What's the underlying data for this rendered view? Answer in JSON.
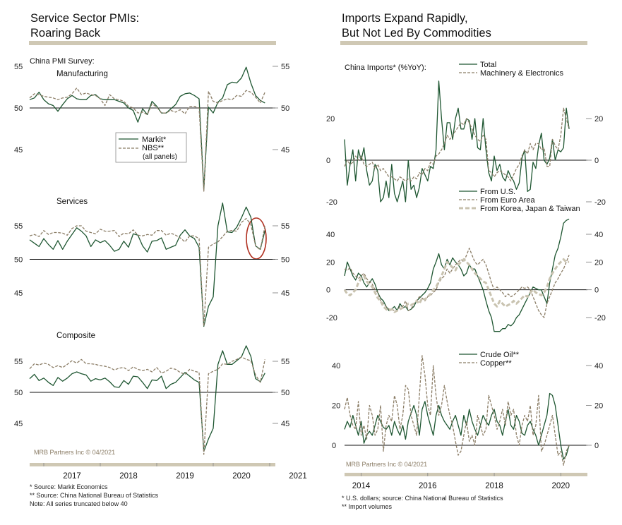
{
  "left": {
    "title_line1": "Service Sector PMIs:",
    "title_line2": "Roaring Back",
    "survey_label": "China PMI Survey:",
    "legend": {
      "markit": "Markit*",
      "nbs": "NBS**",
      "nbs_note": "(all panels)"
    },
    "credit": "MRB Partners Inc © 04/2021",
    "footnotes": [
      "*  Source: Markit Economics",
      "** Source: China National Bureau of Statistics",
      "Note: All series truncated below 40"
    ]
  },
  "right": {
    "title_line1": "Imports Expand Rapidly,",
    "title_line2": "But Not Led By Commodities",
    "credit": "MRB Partners Inc © 04/2021",
    "footnotes": [
      "*  U.S. dollars; source: China National Bureau of Statistics",
      "** Import volumes"
    ]
  },
  "colors": {
    "green": "#1e5631",
    "tan": "#8b7d66",
    "light": "#c9c3b0",
    "highlight": "#b03020",
    "rule": "#cfc8b4"
  },
  "chart_data": [
    {
      "id": "manufacturing",
      "type": "line",
      "title": "Manufacturing",
      "x_start": 2016.75,
      "x_step": 0.08333,
      "ylim": [
        40,
        56
      ],
      "yticks": [
        45,
        50,
        55
      ],
      "baseline": 50,
      "series": [
        {
          "name": "Markit*",
          "style": "solid",
          "values": [
            51.0,
            51.2,
            51.9,
            51.0,
            50.5,
            50.3,
            49.6,
            50.4,
            51.1,
            51.5,
            51.1,
            51.0,
            51.0,
            51.5,
            51.6,
            51.1,
            51.0,
            51.0,
            51.0,
            50.8,
            50.6,
            50.0,
            49.7,
            48.3,
            49.9,
            49.2,
            50.8,
            50.2,
            49.4,
            49.4,
            49.9,
            50.4,
            51.4,
            51.7,
            51.8,
            51.5,
            51.1,
            40.3,
            50.1,
            49.4,
            50.7,
            51.2,
            52.8,
            53.1,
            53.0,
            53.6,
            54.9,
            53.0,
            51.5,
            50.9,
            50.6
          ]
        },
        {
          "name": "NBS**",
          "style": "dashed",
          "values": [
            51.2,
            51.7,
            51.6,
            51.4,
            51.3,
            51.2,
            51.0,
            51.2,
            51.3,
            51.7,
            52.4,
            51.6,
            51.8,
            51.6,
            51.5,
            51.1,
            50.3,
            51.6,
            51.1,
            51.0,
            50.8,
            50.2,
            50.0,
            49.4,
            49.5,
            49.2,
            50.5,
            50.1,
            49.4,
            49.4,
            49.7,
            49.5,
            49.8,
            49.3,
            50.2,
            50.2,
            50.0,
            40.0,
            52.0,
            50.8,
            50.6,
            50.9,
            51.1,
            51.0,
            51.5,
            51.4,
            52.1,
            51.9,
            51.3,
            50.6,
            51.9
          ]
        }
      ]
    },
    {
      "id": "services",
      "type": "line",
      "title": "Services",
      "x_start": 2016.75,
      "x_step": 0.08333,
      "ylim": [
        40,
        59
      ],
      "yticks": [
        45,
        50,
        55
      ],
      "baseline": 50,
      "series": [
        {
          "name": "Markit*",
          "style": "solid",
          "values": [
            52.9,
            52.4,
            51.9,
            53.1,
            52.2,
            51.5,
            52.8,
            51.5,
            52.7,
            53.7,
            54.7,
            54.2,
            53.5,
            51.9,
            52.9,
            52.5,
            52.8,
            52.1,
            51.2,
            51.5,
            52.7,
            51.8,
            53.8,
            53.6,
            52.0,
            51.1,
            52.7,
            52.8,
            53.2,
            51.5,
            51.8,
            52.1,
            53.6,
            54.4,
            53.5,
            53.1,
            51.8,
            40.0,
            43.0,
            44.4,
            55.0,
            58.4,
            54.1,
            54.0,
            54.8,
            56.2,
            57.8,
            56.3,
            52.0,
            51.5,
            54.3
          ]
        },
        {
          "name": "NBS**",
          "style": "dashed",
          "values": [
            53.5,
            53.7,
            53.4,
            54.3,
            53.7,
            54.0,
            54.0,
            53.9,
            53.6,
            54.6,
            55.0,
            55.0,
            54.2,
            54.0,
            53.8,
            54.5,
            54.2,
            54.2,
            54.3,
            53.4,
            53.9,
            53.8,
            54.4,
            53.6,
            53.5,
            53.7,
            53.6,
            54.3,
            54.3,
            53.6,
            53.9,
            53.6,
            53.2,
            52.6,
            53.5,
            53.5,
            53.1,
            40.0,
            51.8,
            52.3,
            52.6,
            53.4,
            54.2,
            54.3,
            54.2,
            55.5,
            56.1,
            55.2,
            52.0,
            51.4,
            55.0
          ]
        }
      ]
    },
    {
      "id": "composite",
      "type": "line",
      "title": "Composite",
      "x_start": 2016.75,
      "x_step": 0.08333,
      "ylim": [
        40,
        58
      ],
      "yticks": [
        45,
        50,
        55
      ],
      "baseline": 50,
      "series": [
        {
          "name": "Markit*",
          "style": "solid",
          "values": [
            52.2,
            52.9,
            51.9,
            52.3,
            51.6,
            51.1,
            52.4,
            51.8,
            52.3,
            53.0,
            53.3,
            53.0,
            52.8,
            51.8,
            52.2,
            52.0,
            52.3,
            51.7,
            50.9,
            50.8,
            51.9,
            51.3,
            52.6,
            52.5,
            51.6,
            50.6,
            52.0,
            51.9,
            52.6,
            50.6,
            51.3,
            51.6,
            52.4,
            53.2,
            52.6,
            52.0,
            51.6,
            40.5,
            42.5,
            44.2,
            54.5,
            56.7,
            54.5,
            54.5,
            55.1,
            55.7,
            57.5,
            55.8,
            52.2,
            51.7,
            53.1
          ]
        },
        {
          "name": "NBS**",
          "style": "dashed",
          "values": [
            53.8,
            54.6,
            54.4,
            54.7,
            54.5,
            54.0,
            54.3,
            54.0,
            54.5,
            55.1,
            54.7,
            55.3,
            54.6,
            54.6,
            54.5,
            54.3,
            54.2,
            54.0,
            53.6,
            53.9,
            54.0,
            53.5,
            54.1,
            53.7,
            53.5,
            53.7,
            53.3,
            54.0,
            53.1,
            53.4,
            53.9,
            53.7,
            53.2,
            52.9,
            53.7,
            53.4,
            53.2,
            40.0,
            53.0,
            53.4,
            53.7,
            54.6,
            54.5,
            55.0,
            55.3,
            55.7,
            55.3,
            55.1,
            52.8,
            51.6,
            55.3
          ]
        }
      ]
    },
    {
      "id": "imports_total",
      "type": "line",
      "title": "China Imports* (%YoY):",
      "x_start": 2013.5,
      "x_step": 0.08333,
      "ylim": [
        -27,
        40
      ],
      "yticks": [
        -20,
        0,
        20
      ],
      "baseline": 0,
      "series": [
        {
          "name": "Total",
          "style": "solid",
          "values": [
            10,
            -12,
            -2,
            5,
            -10,
            5,
            0,
            6,
            -5,
            -12,
            -10,
            -2,
            -5,
            -20,
            -18,
            -10,
            -18,
            -2,
            -16,
            -20,
            -15,
            -10,
            -20,
            0,
            -14,
            -12,
            -18,
            -13,
            -4,
            -7,
            -10,
            -3,
            -4,
            5,
            38,
            20,
            5,
            18,
            18,
            10,
            20,
            25,
            15,
            15,
            20,
            19,
            10,
            20,
            6,
            5,
            20,
            5,
            -6,
            -10,
            2,
            -5,
            -2,
            -8,
            -10,
            -5,
            -8,
            -10,
            -14,
            -11,
            1,
            5,
            -15,
            -14,
            -1,
            -4,
            7,
            13,
            0,
            -2,
            1,
            10,
            0,
            5,
            4,
            6,
            25,
            15
          ]
        },
        {
          "name": "Machinery & Electronics",
          "style": "dashed",
          "values": [
            -3,
            0,
            -2,
            -1,
            2,
            0,
            2,
            -2,
            -3,
            -2,
            -1,
            -4,
            -2,
            -5,
            -4,
            -6,
            -8,
            -8,
            -9,
            -10,
            -8,
            -9,
            -10,
            -9,
            -10,
            -8,
            -9,
            -6,
            -7,
            -4,
            -5,
            -1,
            -2,
            2,
            3,
            5,
            8,
            12,
            10,
            12,
            14,
            16,
            18,
            17,
            20,
            18,
            15,
            12,
            10,
            9,
            12,
            10,
            -5,
            -6,
            -8,
            -6,
            -5,
            -6,
            -7,
            -8,
            -10,
            -7,
            -4,
            -2,
            2,
            5,
            3,
            8,
            5,
            8,
            8,
            5,
            6,
            -3,
            -3,
            10,
            7,
            5,
            12,
            25,
            20,
            15
          ]
        }
      ]
    },
    {
      "id": "imports_region",
      "type": "line",
      "title": "",
      "x_start": 2013.5,
      "x_step": 0.08333,
      "ylim": [
        -30,
        52
      ],
      "yticks": [
        -20,
        0,
        20,
        40
      ],
      "baseline": 0,
      "series": [
        {
          "name": "From U.S.",
          "style": "solid",
          "values": [
            10,
            20,
            15,
            10,
            7,
            12,
            10,
            5,
            2,
            5,
            8,
            4,
            -2,
            -6,
            -8,
            -12,
            -15,
            -14,
            -12,
            -15,
            -10,
            -13,
            -12,
            -15,
            -14,
            -12,
            -8,
            -6,
            -4,
            -2,
            1,
            5,
            15,
            20,
            26,
            18,
            15,
            22,
            18,
            23,
            20,
            18,
            15,
            10,
            12,
            18,
            15,
            15,
            10,
            5,
            0,
            -8,
            -15,
            -20,
            -30,
            -35,
            -33,
            -28,
            -28,
            -25,
            -26,
            -24,
            -20,
            -18,
            -14,
            -10,
            -6,
            -2,
            2,
            1,
            0,
            0,
            -5,
            -10,
            5,
            15,
            25,
            30,
            38,
            48,
            50,
            51
          ]
        },
        {
          "name": "From Euro Area",
          "style": "dashed",
          "values": [
            15,
            14,
            16,
            12,
            10,
            8,
            10,
            12,
            8,
            6,
            4,
            0,
            -2,
            -8,
            -10,
            -12,
            -14,
            -14,
            -15,
            -15,
            -12,
            -12,
            -8,
            -15,
            -14,
            -10,
            -8,
            -5,
            -6,
            -8,
            -5,
            -4,
            -2,
            0,
            5,
            8,
            10,
            15,
            12,
            15,
            18,
            20,
            22,
            20,
            25,
            30,
            25,
            20,
            18,
            20,
            22,
            18,
            12,
            5,
            0,
            2,
            0,
            -2,
            -5,
            -3,
            -5,
            -4,
            -2,
            0,
            2,
            1,
            2,
            0,
            -5,
            -10,
            -15,
            -18,
            -20,
            -10,
            -5,
            0,
            5,
            8,
            12,
            15,
            20,
            25
          ]
        },
        {
          "name": "From Korea, Japan & Taiwan",
          "style": "thick-dashed",
          "values": [
            0,
            -3,
            -4,
            -2,
            0,
            5,
            8,
            10,
            6,
            4,
            2,
            -2,
            -6,
            -8,
            -12,
            -14,
            -15,
            -14,
            -16,
            -15,
            -14,
            -13,
            -12,
            -10,
            -11,
            -10,
            -8,
            -10,
            -6,
            -7,
            -5,
            -3,
            0,
            2,
            6,
            10,
            15,
            20,
            18,
            16,
            14,
            18,
            20,
            22,
            20,
            18,
            15,
            12,
            10,
            8,
            6,
            5,
            0,
            -5,
            -10,
            -12,
            -8,
            -10,
            -12,
            -11,
            -10,
            -8,
            -10,
            -8,
            -6,
            -4,
            -5,
            -2,
            0,
            -2,
            -3,
            -4,
            -2,
            2,
            8,
            12,
            15,
            18,
            20,
            22,
            20,
            20
          ]
        }
      ]
    },
    {
      "id": "imports_commodity",
      "type": "line",
      "title": "",
      "x_start": 2013.5,
      "x_step": 0.08333,
      "ylim": [
        -12,
        50
      ],
      "yticks": [
        0,
        20,
        40
      ],
      "baseline": 0,
      "series": [
        {
          "name": "Crude Oil**",
          "style": "solid",
          "values": [
            8,
            12,
            9,
            15,
            10,
            5,
            12,
            1,
            5,
            7,
            5,
            10,
            15,
            12,
            9,
            8,
            10,
            5,
            12,
            8,
            5,
            10,
            3,
            12,
            16,
            20,
            15,
            5,
            18,
            22,
            15,
            10,
            5,
            15,
            20,
            15,
            12,
            10,
            8,
            12,
            15,
            10,
            5,
            15,
            10,
            18,
            12,
            8,
            5,
            10,
            15,
            12,
            10,
            15,
            18,
            12,
            10,
            5,
            12,
            18,
            10,
            8,
            15,
            12,
            6,
            5,
            10,
            12,
            8,
            5,
            0,
            5,
            10,
            15,
            26,
            25,
            20,
            10,
            0,
            -7,
            -5,
            0
          ]
        },
        {
          "name": "Copper**",
          "style": "dashed",
          "values": [
            18,
            24,
            15,
            10,
            8,
            22,
            5,
            10,
            3,
            20,
            15,
            5,
            8,
            20,
            -3,
            10,
            15,
            12,
            25,
            20,
            8,
            15,
            30,
            28,
            15,
            10,
            5,
            25,
            45,
            35,
            20,
            15,
            40,
            25,
            15,
            20,
            30,
            22,
            15,
            10,
            2,
            -5,
            -3,
            5,
            12,
            2,
            5,
            0,
            15,
            10,
            5,
            8,
            25,
            20,
            15,
            8,
            12,
            18,
            10,
            22,
            15,
            18,
            5,
            0,
            10,
            15,
            12,
            20,
            5,
            10,
            25,
            -3,
            0,
            5,
            10,
            15,
            5,
            -5,
            -3,
            -10,
            -3,
            0
          ]
        }
      ]
    }
  ],
  "axes": {
    "left_years": [
      "2017",
      "2018",
      "2019",
      "2020",
      "2021"
    ],
    "right_years": [
      "2014",
      "2016",
      "2018",
      "2020"
    ],
    "left_x_range": [
      2016.75,
      2021.1
    ],
    "right_x_range": [
      2013.5,
      2020.8
    ]
  }
}
